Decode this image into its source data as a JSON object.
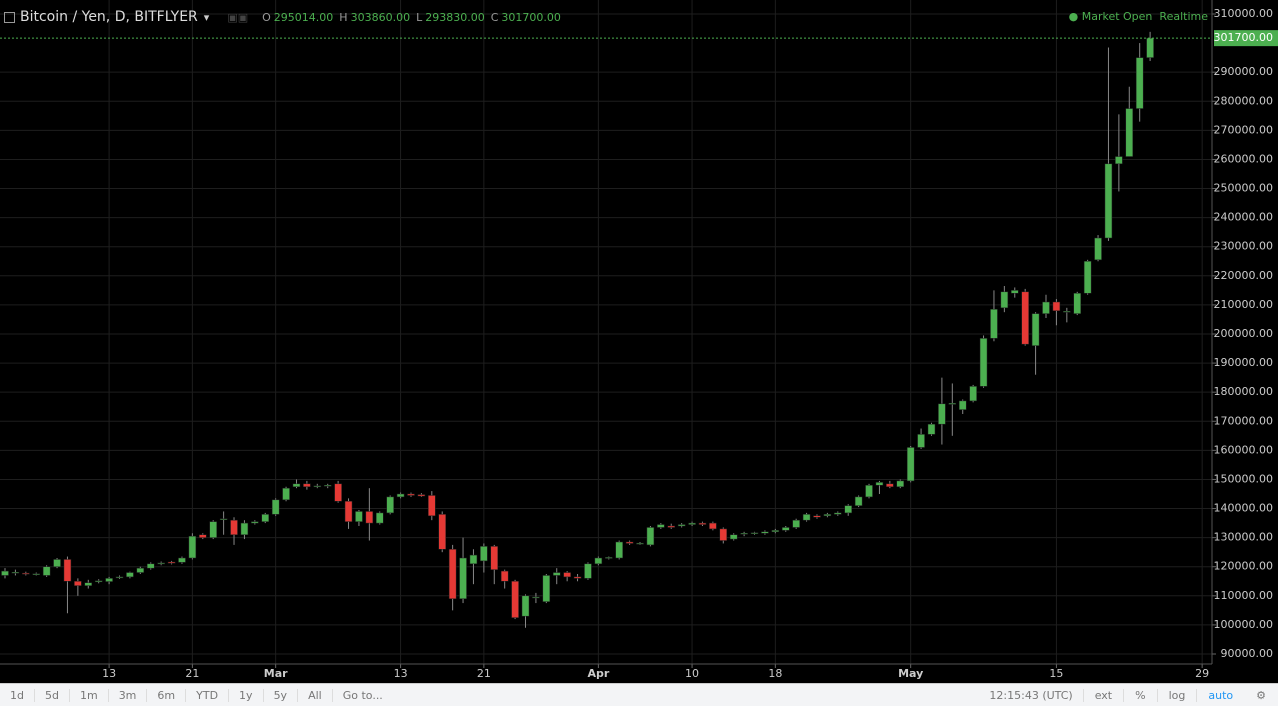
{
  "header": {
    "title": "Bitcoin / Yen, D, BITFLYER",
    "ohlc": [
      {
        "key": "O",
        "value": "295014.00"
      },
      {
        "key": "H",
        "value": "303860.00"
      },
      {
        "key": "L",
        "value": "293830.00"
      },
      {
        "key": "C",
        "value": "301700.00"
      }
    ],
    "status": "Market Open",
    "feed": "Realtime"
  },
  "chart_data": {
    "type": "candlestick",
    "up_color": "#4caf50",
    "down_color": "#e53935",
    "grid": true,
    "x": [
      "02-03",
      "02-04",
      "02-05",
      "02-06",
      "02-07",
      "02-08",
      "02-09",
      "02-10",
      "02-11",
      "02-12",
      "02-13",
      "02-14",
      "02-15",
      "02-16",
      "02-17",
      "02-18",
      "02-19",
      "02-20",
      "02-21",
      "02-22",
      "02-23",
      "02-24",
      "02-25",
      "02-26",
      "02-27",
      "02-28",
      "03-01",
      "03-02",
      "03-03",
      "03-04",
      "03-05",
      "03-06",
      "03-07",
      "03-08",
      "03-09",
      "03-10",
      "03-11",
      "03-12",
      "03-13",
      "03-14",
      "03-15",
      "03-16",
      "03-17",
      "03-18",
      "03-19",
      "03-20",
      "03-21",
      "03-22",
      "03-23",
      "03-24",
      "03-25",
      "03-26",
      "03-27",
      "03-28",
      "03-29",
      "03-30",
      "03-31",
      "04-01",
      "04-02",
      "04-03",
      "04-04",
      "04-05",
      "04-06",
      "04-07",
      "04-08",
      "04-09",
      "04-10",
      "04-11",
      "04-12",
      "04-13",
      "04-14",
      "04-15",
      "04-16",
      "04-17",
      "04-18",
      "04-19",
      "04-20",
      "04-21",
      "04-22",
      "04-23",
      "04-24",
      "04-25",
      "04-26",
      "04-27",
      "04-28",
      "04-29",
      "04-30",
      "05-01",
      "05-02",
      "05-03",
      "05-04",
      "05-05",
      "05-06",
      "05-07",
      "05-08",
      "05-09",
      "05-10",
      "05-11",
      "05-12",
      "05-13",
      "05-14",
      "05-15",
      "05-16",
      "05-17",
      "05-18",
      "05-19",
      "05-20",
      "05-21",
      "05-22",
      "05-23",
      "05-24"
    ],
    "open": [
      117000,
      118000,
      117800,
      117400,
      117000,
      120000,
      122500,
      115000,
      113500,
      114800,
      114900,
      116300,
      116500,
      118000,
      119500,
      121000,
      121600,
      121500,
      123000,
      131000,
      130000,
      136300,
      136000,
      131000,
      135000,
      135500,
      138000,
      143000,
      147500,
      148500,
      147500,
      147800,
      148500,
      142500,
      135500,
      139000,
      135000,
      138500,
      144000,
      145000,
      144800,
      144500,
      138000,
      126000,
      109000,
      121000,
      122000,
      127000,
      118500,
      115000,
      103000,
      109300,
      108000,
      117000,
      118000,
      116500,
      116000,
      121000,
      123000,
      123000,
      128500,
      128000,
      127500,
      133500,
      134000,
      134000,
      134500,
      135000,
      135000,
      133000,
      129500,
      131300,
      131500,
      131500,
      132000,
      132500,
      133500,
      136000,
      137500,
      137500,
      138000,
      138500,
      141000,
      144000,
      148000,
      148500,
      147500,
      149500,
      161000,
      165500,
      169000,
      175800,
      174000,
      177000,
      182000,
      198500,
      209000,
      214000,
      214500,
      196000,
      207000,
      211000,
      207500,
      207000,
      214000,
      225500,
      233000,
      258500,
      261000,
      277500,
      295014
    ],
    "high": [
      119500,
      119000,
      118300,
      118000,
      120500,
      123000,
      123500,
      116000,
      115500,
      115700,
      116500,
      117000,
      118300,
      120000,
      121500,
      121800,
      122000,
      123500,
      131500,
      131500,
      136000,
      139000,
      137000,
      136000,
      136000,
      138500,
      143500,
      147500,
      150000,
      149500,
      148500,
      148500,
      149500,
      143500,
      139500,
      147000,
      139000,
      144500,
      145500,
      145500,
      145300,
      146000,
      139000,
      127500,
      130000,
      126000,
      128000,
      127500,
      119000,
      115500,
      110500,
      111000,
      117500,
      119500,
      118500,
      117500,
      121500,
      123500,
      123500,
      129000,
      129000,
      128500,
      134000,
      135000,
      134800,
      135000,
      135500,
      135500,
      135500,
      133500,
      131500,
      132000,
      132000,
      132500,
      133000,
      134000,
      136500,
      138500,
      138000,
      138500,
      139000,
      141500,
      144500,
      148500,
      149500,
      149500,
      150000,
      161500,
      167500,
      169500,
      185000,
      183000,
      177500,
      182500,
      199500,
      215000,
      216500,
      216000,
      215500,
      207500,
      213500,
      212000,
      209000,
      214500,
      225500,
      234000,
      298500,
      275500,
      285000,
      300000,
      303860
    ],
    "low": [
      116000,
      117000,
      117000,
      117000,
      116500,
      119500,
      104000,
      110000,
      112500,
      114300,
      114000,
      115800,
      116000,
      117500,
      119000,
      120500,
      120800,
      121000,
      122500,
      129500,
      129500,
      131000,
      127500,
      129500,
      134500,
      135000,
      137500,
      142500,
      147000,
      146500,
      147000,
      147000,
      142000,
      133000,
      134000,
      129000,
      134500,
      138000,
      143500,
      144000,
      144000,
      136000,
      125000,
      105000,
      107500,
      114000,
      118000,
      114000,
      112500,
      102000,
      99000,
      107500,
      107500,
      114000,
      115000,
      115000,
      115500,
      120500,
      122500,
      122500,
      127500,
      127500,
      127000,
      133000,
      133000,
      133500,
      134000,
      134000,
      132500,
      128000,
      129000,
      130500,
      131000,
      131000,
      131500,
      132000,
      133000,
      135500,
      136500,
      137000,
      137500,
      137500,
      140500,
      143500,
      145000,
      147000,
      147000,
      149000,
      160500,
      165000,
      162000,
      165000,
      172500,
      176500,
      181500,
      197500,
      207500,
      212500,
      196000,
      186000,
      205500,
      203000,
      204000,
      206500,
      213500,
      225000,
      232000,
      249000,
      261000,
      273000,
      293830
    ],
    "close": [
      118500,
      118100,
      117500,
      117600,
      120000,
      122500,
      115000,
      113500,
      114500,
      115200,
      116000,
      116500,
      118000,
      119500,
      121000,
      121300,
      121200,
      123000,
      130500,
      130000,
      135500,
      136500,
      131000,
      135000,
      135500,
      138000,
      143000,
      147000,
      148500,
      147500,
      147800,
      148000,
      142500,
      135500,
      139000,
      135000,
      138500,
      144000,
      145000,
      144500,
      144300,
      137500,
      126000,
      109000,
      123000,
      124000,
      127000,
      119000,
      115000,
      102500,
      110000,
      109600,
      117000,
      118000,
      116500,
      116000,
      121000,
      123000,
      123200,
      128500,
      128000,
      128100,
      133500,
      134500,
      133500,
      134500,
      135000,
      134500,
      133000,
      129000,
      131000,
      131500,
      131700,
      132000,
      132500,
      133500,
      136000,
      138000,
      137000,
      138000,
      138500,
      141000,
      144000,
      148000,
      149000,
      147500,
      149500,
      161000,
      165500,
      169000,
      176000,
      176200,
      177000,
      182000,
      198500,
      208500,
      214500,
      215000,
      196500,
      207000,
      211000,
      208000,
      207800,
      214000,
      225000,
      233000,
      258500,
      261000,
      277500,
      295000,
      301700
    ],
    "last_price": {
      "value": 301700,
      "label": "301700.00"
    },
    "ylim": [
      86560,
      314810
    ],
    "yticks": [
      {
        "value": 90000,
        "label": "90000.00"
      },
      {
        "value": 100000,
        "label": "100000.00"
      },
      {
        "value": 110000,
        "label": "110000.00"
      },
      {
        "value": 120000,
        "label": "120000.00"
      },
      {
        "value": 130000,
        "label": "130000.00"
      },
      {
        "value": 140000,
        "label": "140000.00"
      },
      {
        "value": 150000,
        "label": "150000.00"
      },
      {
        "value": 160000,
        "label": "160000.00"
      },
      {
        "value": 170000,
        "label": "170000.00"
      },
      {
        "value": 180000,
        "label": "180000.00"
      },
      {
        "value": 190000,
        "label": "190000.00"
      },
      {
        "value": 200000,
        "label": "200000.00"
      },
      {
        "value": 210000,
        "label": "210000.00"
      },
      {
        "value": 220000,
        "label": "220000.00"
      },
      {
        "value": 230000,
        "label": "230000.00"
      },
      {
        "value": 240000,
        "label": "240000.00"
      },
      {
        "value": 250000,
        "label": "250000.00"
      },
      {
        "value": 260000,
        "label": "260000.00"
      },
      {
        "value": 270000,
        "label": "270000.00"
      },
      {
        "value": 280000,
        "label": "280000.00"
      },
      {
        "value": 290000,
        "label": "290000.00"
      },
      {
        "value": 310000,
        "label": "310000.00"
      }
    ],
    "xticks": [
      {
        "value": "02-13",
        "label": "13"
      },
      {
        "value": "02-21",
        "label": "21"
      },
      {
        "value": "03-01",
        "label": "Mar"
      },
      {
        "value": "03-13",
        "label": "13"
      },
      {
        "value": "03-21",
        "label": "21"
      },
      {
        "value": "04-01",
        "label": "Apr"
      },
      {
        "value": "04-10",
        "label": "10"
      },
      {
        "value": "04-18",
        "label": "18"
      },
      {
        "value": "05-01",
        "label": "May"
      },
      {
        "value": "05-15",
        "label": "15"
      },
      {
        "value": "05-29",
        "label": "29"
      }
    ]
  },
  "toolbar": {
    "ranges": [
      "1d",
      "5d",
      "1m",
      "3m",
      "6m",
      "YTD",
      "1y",
      "5y",
      "All"
    ],
    "goto": "Go to...",
    "clock": "12:15:43 (UTC)",
    "options": [
      "ext",
      "%",
      "log",
      "auto"
    ]
  }
}
